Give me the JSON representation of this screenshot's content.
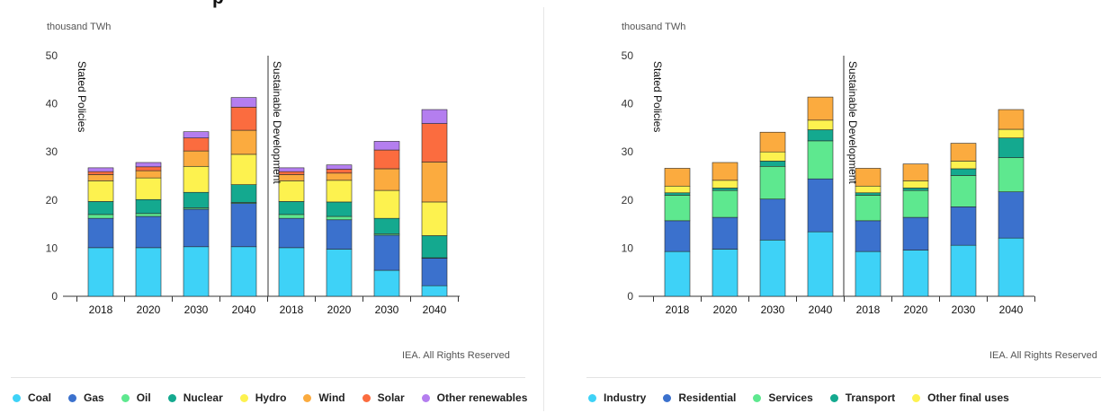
{
  "page": {
    "title_fragment": "p",
    "credit": "IEA. All Rights Reserved"
  },
  "chart_data": [
    {
      "type": "bar",
      "stacked": true,
      "unit_label": "thousand TWh",
      "ylim": [
        0,
        50
      ],
      "yticks": [
        "0",
        "10",
        "20",
        "30",
        "40",
        "50"
      ],
      "scenarios": [
        "Stated Policies",
        "Sustainable Development"
      ],
      "categories": [
        "2018",
        "2020",
        "2030",
        "2040",
        "2018",
        "2020",
        "2030",
        "2040"
      ],
      "legend_position": "bottom",
      "series": [
        {
          "name": "Coal",
          "color": "#3ed2f7",
          "values": [
            10.1,
            10.1,
            10.3,
            10.3,
            10.1,
            9.8,
            5.4,
            2.2
          ]
        },
        {
          "name": "Gas",
          "color": "#3b71cd",
          "values": [
            6.1,
            6.5,
            7.8,
            9.0,
            6.1,
            6.1,
            7.3,
            5.7
          ]
        },
        {
          "name": "Oil",
          "color": "#5ee88f",
          "values": [
            0.8,
            0.6,
            0.3,
            0.2,
            0.8,
            0.7,
            0.3,
            0.1
          ]
        },
        {
          "name": "Nuclear",
          "color": "#14a98f",
          "values": [
            2.7,
            2.9,
            3.2,
            3.7,
            2.7,
            3.0,
            3.2,
            4.6
          ]
        },
        {
          "name": "Hydro",
          "color": "#fdf24f",
          "values": [
            4.3,
            4.5,
            5.4,
            6.3,
            4.3,
            4.5,
            5.8,
            7.0
          ]
        },
        {
          "name": "Wind",
          "color": "#fbab3f",
          "values": [
            1.3,
            1.5,
            3.2,
            5.0,
            1.3,
            1.5,
            4.5,
            8.3
          ]
        },
        {
          "name": "Solar",
          "color": "#fb6c3f",
          "values": [
            0.6,
            0.8,
            2.7,
            4.8,
            0.6,
            0.8,
            3.9,
            8.0
          ]
        },
        {
          "name": "Other renewables",
          "color": "#b47eef",
          "values": [
            0.8,
            0.9,
            1.3,
            2.0,
            0.8,
            0.9,
            1.8,
            2.9
          ]
        }
      ]
    },
    {
      "type": "bar",
      "stacked": true,
      "unit_label": "thousand TWh",
      "ylim": [
        0,
        50
      ],
      "yticks": [
        "0",
        "10",
        "20",
        "30",
        "40",
        "50"
      ],
      "scenarios": [
        "Stated Policies",
        "Sustainable Development"
      ],
      "categories": [
        "2018",
        "2020",
        "2030",
        "2040",
        "2018",
        "2020",
        "2030",
        "2040"
      ],
      "legend_position": "bottom",
      "series": [
        {
          "name": "Industry",
          "color": "#3ed2f7",
          "values": [
            9.3,
            9.8,
            11.7,
            13.4,
            9.3,
            9.6,
            10.6,
            12.1
          ]
        },
        {
          "name": "Residential",
          "color": "#3b71cd",
          "values": [
            6.4,
            6.6,
            8.5,
            11.0,
            6.4,
            6.8,
            8.0,
            9.6
          ]
        },
        {
          "name": "Services",
          "color": "#5ee88f",
          "values": [
            5.3,
            5.6,
            6.8,
            7.9,
            5.3,
            5.6,
            6.5,
            7.1
          ]
        },
        {
          "name": "Transport",
          "color": "#14a98f",
          "values": [
            0.5,
            0.5,
            1.1,
            2.3,
            0.5,
            0.5,
            1.4,
            4.1
          ]
        },
        {
          "name": "Other final uses",
          "color": "#fdf24f",
          "values": [
            1.4,
            1.6,
            1.9,
            2.0,
            1.4,
            1.5,
            1.6,
            1.8
          ]
        },
        {
          "name": "",
          "color": "#fbab3f",
          "values": [
            3.7,
            3.7,
            4.1,
            4.8,
            3.7,
            3.5,
            3.7,
            4.1
          ]
        }
      ]
    }
  ],
  "legends": [
    [
      {
        "label": "Coal",
        "color": "#3ed2f7"
      },
      {
        "label": "Gas",
        "color": "#3b71cd"
      },
      {
        "label": "Oil",
        "color": "#5ee88f"
      },
      {
        "label": "Nuclear",
        "color": "#14a98f"
      },
      {
        "label": "Hydro",
        "color": "#fdf24f"
      },
      {
        "label": "Wind",
        "color": "#fbab3f"
      },
      {
        "label": "Solar",
        "color": "#fb6c3f"
      },
      {
        "label": "Other renewables",
        "color": "#b47eef"
      }
    ],
    [
      {
        "label": "Industry",
        "color": "#3ed2f7"
      },
      {
        "label": "Residential",
        "color": "#3b71cd"
      },
      {
        "label": "Services",
        "color": "#5ee88f"
      },
      {
        "label": "Transport",
        "color": "#14a98f"
      },
      {
        "label": "Other final uses",
        "color": "#fdf24f"
      }
    ]
  ]
}
